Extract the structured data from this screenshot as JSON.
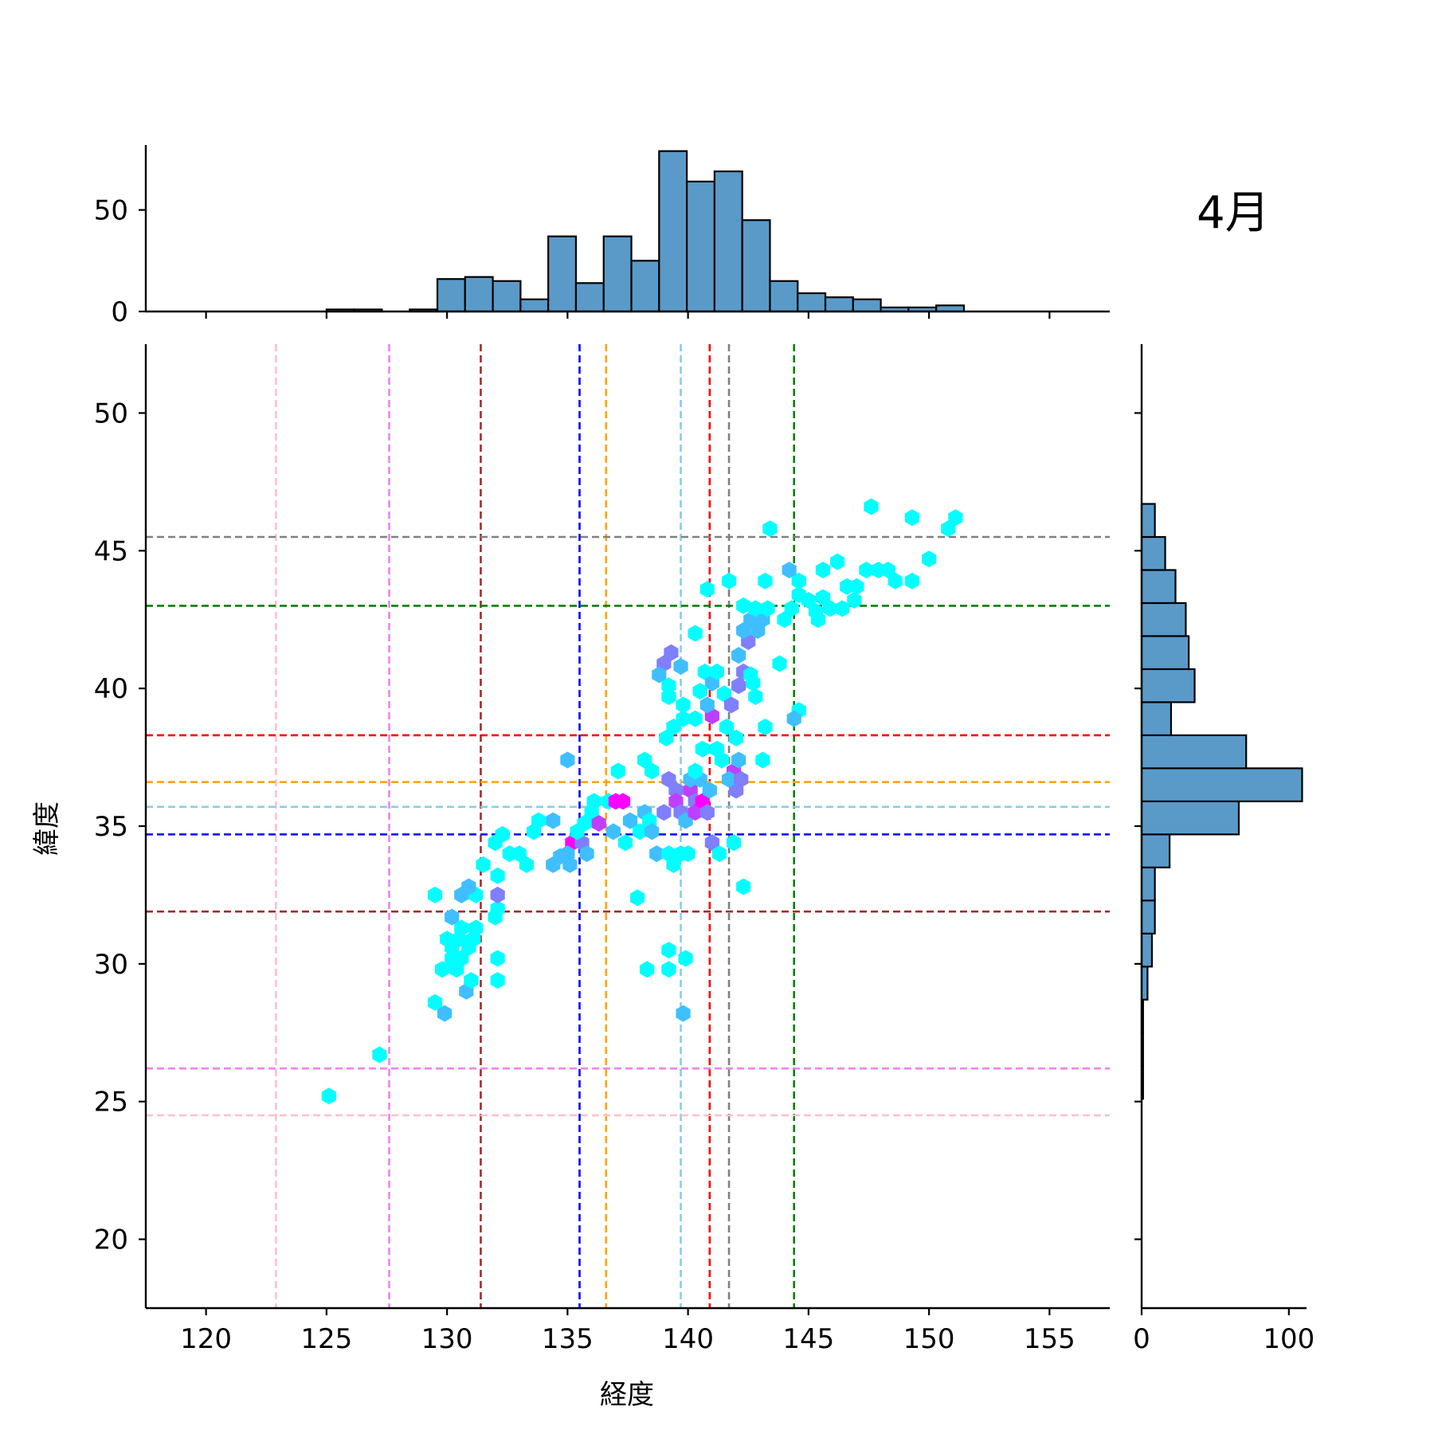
{
  "chart_data": {
    "type": "hexbin-jointplot",
    "annotation": "4月",
    "xlabel": "経度",
    "ylabel": "緯度",
    "xlim": [
      117.5,
      157.5
    ],
    "ylim": [
      17.5,
      52.5
    ],
    "xticks": [
      120,
      125,
      130,
      135,
      140,
      145,
      150,
      155
    ],
    "yticks": [
      20,
      25,
      30,
      35,
      40,
      45,
      50
    ],
    "bar_color": "#5a9ac9",
    "top_histogram": {
      "ylim": [
        0,
        82
      ],
      "yticks": [
        0,
        50
      ],
      "bin_edges": [
        125.0,
        126.15,
        127.3,
        128.45,
        129.6,
        130.75,
        131.9,
        133.05,
        134.2,
        135.35,
        136.5,
        137.65,
        138.8,
        139.95,
        141.1,
        142.25,
        143.4,
        144.55,
        145.7,
        146.85,
        148.0,
        149.15,
        150.3,
        151.45
      ],
      "counts": [
        1,
        1,
        0,
        1,
        16,
        17,
        15,
        6,
        37,
        14,
        37,
        25,
        79,
        64,
        69,
        45,
        15,
        9,
        7,
        6,
        2,
        2,
        3
      ]
    },
    "right_histogram": {
      "xlim": [
        0,
        112
      ],
      "xticks": [
        0,
        100
      ],
      "bin_edges": [
        25.1,
        26.3,
        27.5,
        28.7,
        29.9,
        31.1,
        32.3,
        33.5,
        34.7,
        35.9,
        37.1,
        38.3,
        39.5,
        40.7,
        41.9,
        43.1,
        44.3,
        45.5,
        46.7
      ],
      "counts": [
        1,
        1,
        1,
        4,
        7,
        9,
        9,
        19,
        66,
        109,
        71,
        20,
        36,
        32,
        30,
        23,
        16,
        9,
        4
      ]
    },
    "hline_colors": [
      "gray",
      "green",
      "red",
      "orange",
      "skyblue",
      "blue",
      "brown",
      "violet",
      "pink"
    ],
    "hlines": [
      45.5,
      43.0,
      38.3,
      36.6,
      35.7,
      34.7,
      31.9,
      26.2,
      24.5
    ],
    "vline_colors": [
      "pink",
      "violet",
      "brown",
      "blue",
      "orange",
      "skyblue",
      "red",
      "gray",
      "green"
    ],
    "vlines": [
      122.9,
      127.6,
      131.4,
      135.5,
      136.6,
      139.7,
      140.9,
      141.7,
      144.4
    ],
    "hexbins": [
      [
        125.1,
        25.2,
        1
      ],
      [
        127.2,
        26.7,
        1
      ],
      [
        129.9,
        28.2,
        2
      ],
      [
        129.5,
        28.6,
        1
      ],
      [
        130.8,
        29.0,
        2
      ],
      [
        129.8,
        29.8,
        1
      ],
      [
        130.4,
        29.8,
        1
      ],
      [
        131.0,
        29.4,
        1
      ],
      [
        130.2,
        30.2,
        1
      ],
      [
        130.6,
        30.2,
        1
      ],
      [
        130.9,
        30.6,
        1
      ],
      [
        130.2,
        30.6,
        1
      ],
      [
        130.0,
        30.9,
        1
      ],
      [
        130.5,
        30.9,
        1
      ],
      [
        131.1,
        30.9,
        1
      ],
      [
        130.6,
        31.3,
        1
      ],
      [
        131.2,
        31.3,
        1
      ],
      [
        130.2,
        31.7,
        2
      ],
      [
        132.0,
        31.7,
        1
      ],
      [
        132.1,
        32.0,
        1
      ],
      [
        129.5,
        32.5,
        1
      ],
      [
        130.6,
        32.5,
        2
      ],
      [
        131.2,
        32.5,
        1
      ],
      [
        132.1,
        32.5,
        3
      ],
      [
        130.9,
        32.8,
        2
      ],
      [
        131.5,
        33.6,
        1
      ],
      [
        132.1,
        33.2,
        1
      ],
      [
        132.1,
        30.2,
        1
      ],
      [
        132.1,
        29.4,
        1
      ],
      [
        132.0,
        34.4,
        1
      ],
      [
        132.3,
        34.7,
        1
      ],
      [
        132.6,
        34.0,
        1
      ],
      [
        133.0,
        34.0,
        1
      ],
      [
        133.3,
        33.6,
        1
      ],
      [
        133.6,
        34.8,
        1
      ],
      [
        133.8,
        35.2,
        1
      ],
      [
        134.4,
        35.2,
        2
      ],
      [
        134.4,
        33.6,
        2
      ],
      [
        134.7,
        33.9,
        2
      ],
      [
        135.1,
        33.6,
        2
      ],
      [
        135.2,
        34.4,
        5
      ],
      [
        135.0,
        34.0,
        2
      ],
      [
        135.6,
        34.4,
        3
      ],
      [
        135.8,
        34.0,
        2
      ],
      [
        135.4,
        34.8,
        1
      ],
      [
        135.0,
        37.4,
        2
      ],
      [
        135.7,
        35.1,
        1
      ],
      [
        136.0,
        35.5,
        1
      ],
      [
        136.3,
        35.1,
        4
      ],
      [
        136.1,
        35.9,
        1
      ],
      [
        136.7,
        35.9,
        1
      ],
      [
        137.0,
        35.9,
        5
      ],
      [
        137.3,
        35.9,
        5
      ],
      [
        137.1,
        37.0,
        1
      ],
      [
        136.9,
        34.8,
        2
      ],
      [
        137.4,
        34.4,
        1
      ],
      [
        137.6,
        35.2,
        2
      ],
      [
        138.2,
        35.5,
        2
      ],
      [
        138.4,
        35.2,
        1
      ],
      [
        138.0,
        34.8,
        1
      ],
      [
        138.5,
        34.8,
        2
      ],
      [
        138.7,
        34.0,
        2
      ],
      [
        139.2,
        34.0,
        1
      ],
      [
        139.4,
        33.6,
        1
      ],
      [
        139.0,
        35.5,
        3
      ],
      [
        139.2,
        36.7,
        3
      ],
      [
        139.5,
        36.3,
        3
      ],
      [
        139.5,
        35.9,
        4
      ],
      [
        139.7,
        35.5,
        3
      ],
      [
        139.9,
        35.2,
        2
      ],
      [
        138.2,
        37.4,
        1
      ],
      [
        138.5,
        37.0,
        1
      ],
      [
        139.1,
        38.2,
        1
      ],
      [
        139.4,
        38.6,
        1
      ],
      [
        139.8,
        38.9,
        1
      ],
      [
        140.1,
        36.3,
        4
      ],
      [
        140.3,
        35.9,
        3
      ],
      [
        140.3,
        35.5,
        4
      ],
      [
        140.6,
        35.9,
        5
      ],
      [
        140.8,
        35.5,
        3
      ],
      [
        140.9,
        36.3,
        2
      ],
      [
        141.0,
        34.4,
        3
      ],
      [
        140.5,
        36.7,
        2
      ],
      [
        140.1,
        36.7,
        2
      ],
      [
        140.3,
        37.0,
        1
      ],
      [
        140.6,
        37.8,
        1
      ],
      [
        141.2,
        37.8,
        1
      ],
      [
        141.0,
        39.0,
        4
      ],
      [
        140.8,
        39.4,
        2
      ],
      [
        140.7,
        40.6,
        1
      ],
      [
        141.0,
        40.2,
        2
      ],
      [
        141.2,
        40.6,
        1
      ],
      [
        141.5,
        39.8,
        1
      ],
      [
        141.4,
        37.4,
        1
      ],
      [
        141.9,
        37.0,
        4
      ],
      [
        142.0,
        36.3,
        3
      ],
      [
        141.7,
        36.7,
        2
      ],
      [
        142.2,
        36.7,
        3
      ],
      [
        142.1,
        37.4,
        2
      ],
      [
        141.6,
        38.6,
        1
      ],
      [
        140.3,
        38.9,
        1
      ],
      [
        142.0,
        38.2,
        1
      ],
      [
        141.8,
        39.4,
        3
      ],
      [
        142.1,
        40.1,
        3
      ],
      [
        142.3,
        40.6,
        3
      ],
      [
        142.1,
        41.2,
        2
      ],
      [
        142.5,
        41.7,
        3
      ],
      [
        142.3,
        42.1,
        2
      ],
      [
        142.6,
        42.5,
        2
      ],
      [
        142.9,
        42.1,
        2
      ],
      [
        143.1,
        42.5,
        2
      ],
      [
        143.3,
        42.9,
        1
      ],
      [
        142.8,
        42.9,
        1
      ],
      [
        142.6,
        40.5,
        1
      ],
      [
        142.8,
        39.7,
        1
      ],
      [
        143.2,
        38.6,
        1
      ],
      [
        143.1,
        37.4,
        1
      ],
      [
        144.0,
        42.5,
        1
      ],
      [
        144.3,
        42.9,
        1
      ],
      [
        144.6,
        43.4,
        1
      ],
      [
        145.0,
        43.2,
        1
      ],
      [
        145.3,
        42.8,
        1
      ],
      [
        145.6,
        43.3,
        1
      ],
      [
        145.9,
        42.9,
        1
      ],
      [
        145.4,
        42.5,
        1
      ],
      [
        146.4,
        42.9,
        1
      ],
      [
        146.9,
        43.2,
        1
      ],
      [
        147.0,
        43.7,
        1
      ],
      [
        146.6,
        43.7,
        1
      ],
      [
        147.4,
        44.3,
        1
      ],
      [
        147.9,
        44.3,
        1
      ],
      [
        148.3,
        44.3,
        1
      ],
      [
        148.6,
        43.9,
        1
      ],
      [
        146.2,
        44.6,
        1
      ],
      [
        145.6,
        44.3,
        1
      ],
      [
        144.6,
        43.9,
        1
      ],
      [
        144.2,
        44.3,
        2
      ],
      [
        143.2,
        43.9,
        1
      ],
      [
        141.7,
        43.9,
        1
      ],
      [
        140.8,
        43.6,
        1
      ],
      [
        140.3,
        42.0,
        1
      ],
      [
        143.4,
        45.8,
        1
      ],
      [
        147.6,
        46.6,
        1
      ],
      [
        149.3,
        46.2,
        1
      ],
      [
        151.1,
        46.2,
        1
      ],
      [
        150.8,
        45.8,
        1
      ],
      [
        150.0,
        44.7,
        1
      ],
      [
        149.3,
        43.9,
        1
      ],
      [
        144.6,
        39.2,
        1
      ],
      [
        144.4,
        38.9,
        2
      ],
      [
        143.8,
        40.9,
        1
      ],
      [
        139.3,
        41.3,
        3
      ],
      [
        139.0,
        40.9,
        3
      ],
      [
        138.8,
        40.5,
        2
      ],
      [
        139.2,
        40.1,
        1
      ],
      [
        139.7,
        40.8,
        2
      ],
      [
        139.2,
        39.7,
        1
      ],
      [
        139.8,
        39.4,
        1
      ],
      [
        140.5,
        39.9,
        1
      ],
      [
        138.3,
        29.8,
        1
      ],
      [
        139.2,
        29.8,
        1
      ],
      [
        139.9,
        30.2,
        1
      ],
      [
        139.2,
        30.5,
        1
      ],
      [
        139.8,
        28.2,
        2
      ],
      [
        142.3,
        32.8,
        1
      ],
      [
        142.3,
        43.0,
        1
      ],
      [
        142.7,
        40.2,
        1
      ],
      [
        141.3,
        34.0,
        1
      ],
      [
        141.9,
        34.4,
        1
      ],
      [
        137.9,
        32.4,
        1
      ],
      [
        140.0,
        34.0,
        1
      ],
      [
        139.7,
        34.0,
        1
      ]
    ]
  }
}
